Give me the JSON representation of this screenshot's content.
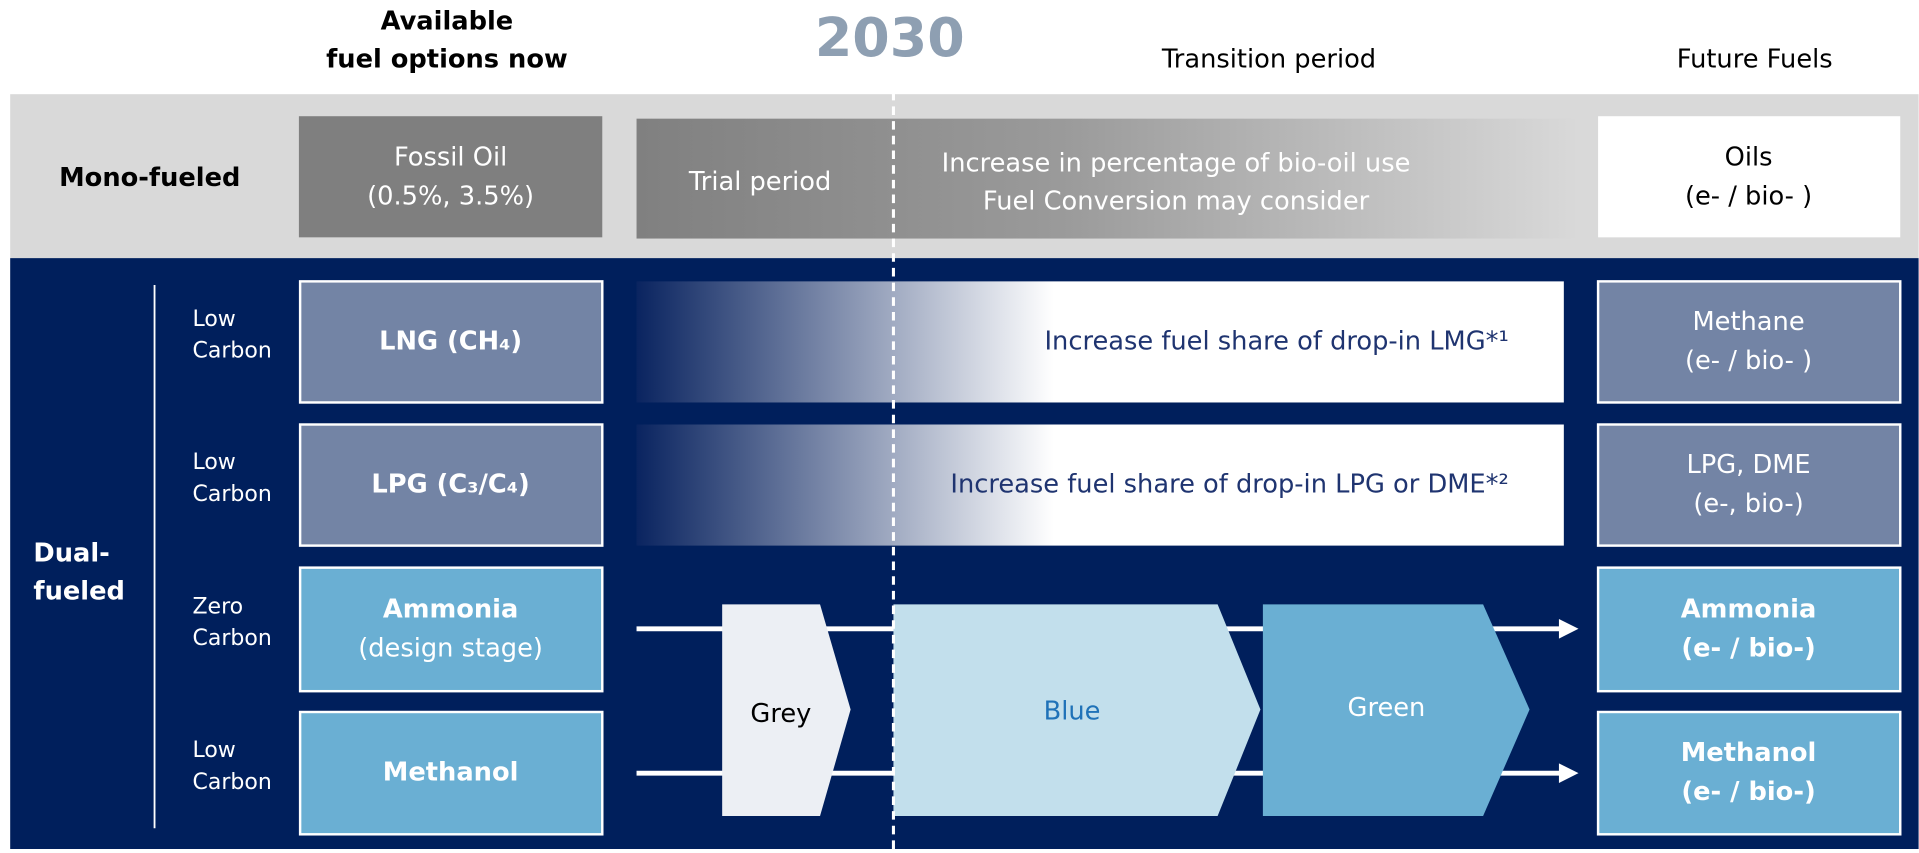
{
  "header": {
    "available": [
      "Available",
      "fuel options now"
    ],
    "year": "2030",
    "transition": "Transition period",
    "future": "Future Fuels"
  },
  "mono": {
    "label": "Mono-fueled",
    "now": [
      "Fossil Oil",
      "(0.5%, 3.5%)"
    ],
    "trial": "Trial period",
    "transition": [
      "Increase in percentage of bio-oil use",
      "Fuel Conversion may consider"
    ],
    "future": [
      "Oils",
      "(e- / bio- )"
    ]
  },
  "dual": {
    "label": [
      "Dual-",
      "fueled"
    ],
    "fuels": [
      {
        "carbon": [
          "Low",
          "Carbon"
        ],
        "now": [
          "LNG (CH₄)"
        ],
        "transition": "Increase fuel share of drop-in LMG*¹",
        "future": [
          "Methane",
          "(e- / bio- )"
        ]
      },
      {
        "carbon": [
          "Low",
          "Carbon"
        ],
        "now": [
          "LPG (C₃/C₄)"
        ],
        "transition": "Increase fuel share of drop-in LPG or DME*²",
        "future": [
          "LPG, DME",
          "(e-, bio-)"
        ]
      },
      {
        "carbon": [
          "Zero",
          "Carbon"
        ],
        "now": [
          "Ammonia",
          "(design stage)"
        ],
        "future": [
          "Ammonia",
          "(e- / bio-)"
        ]
      },
      {
        "carbon": [
          "Low",
          "Carbon"
        ],
        "now": [
          "Methanol"
        ],
        "future": [
          "Methanol",
          "(e- / bio-)"
        ]
      }
    ],
    "stages": [
      "Grey",
      "Blue",
      "Green"
    ]
  }
}
